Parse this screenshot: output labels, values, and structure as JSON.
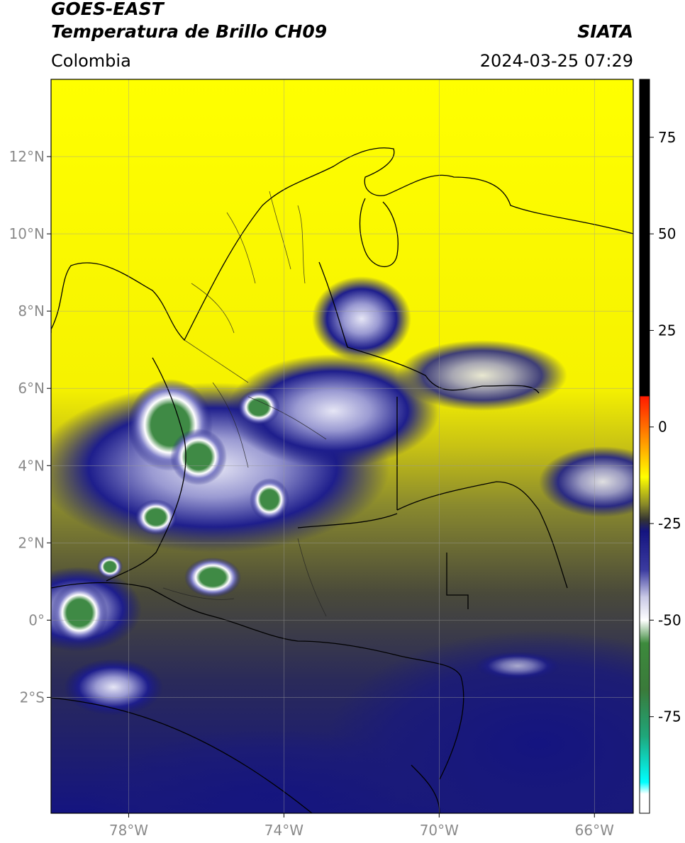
{
  "header": {
    "title_line1": "GOES-EAST",
    "title_line2": "Temperatura de Brillo CH09",
    "brand": "SIATA",
    "region": "Colombia",
    "timestamp": "2024-03-25 07:29"
  },
  "map": {
    "lon_range": [
      -80,
      -65
    ],
    "lat_range": [
      -5,
      14
    ],
    "lon_ticks": [
      {
        "value": -78,
        "label": "78°W"
      },
      {
        "value": -74,
        "label": "74°W"
      },
      {
        "value": -70,
        "label": "70°W"
      },
      {
        "value": -66,
        "label": "66°W"
      }
    ],
    "lat_ticks": [
      {
        "value": 12,
        "label": "12°N"
      },
      {
        "value": 10,
        "label": "10°N"
      },
      {
        "value": 8,
        "label": "8°N"
      },
      {
        "value": 6,
        "label": "6°N"
      },
      {
        "value": 4,
        "label": "4°N"
      },
      {
        "value": 2,
        "label": "2°N"
      },
      {
        "value": 0,
        "label": "0°"
      },
      {
        "value": -2,
        "label": "2°S"
      }
    ],
    "grid": true
  },
  "colorbar": {
    "range": [
      -100,
      90
    ],
    "ticks": [
      {
        "value": 75,
        "label": "75"
      },
      {
        "value": 50,
        "label": "50"
      },
      {
        "value": 25,
        "label": "25"
      },
      {
        "value": 0,
        "label": "0"
      },
      {
        "value": -25,
        "label": "-25"
      },
      {
        "value": -50,
        "label": "-50"
      },
      {
        "value": -75,
        "label": "-75"
      }
    ],
    "stops": [
      {
        "value": 90,
        "color": "#000000"
      },
      {
        "value": 8,
        "color": "#000000"
      },
      {
        "value": 7.9,
        "color": "#ff1a00"
      },
      {
        "value": -4,
        "color": "#ff9a00"
      },
      {
        "value": -13,
        "color": "#ffff00"
      },
      {
        "value": -20,
        "color": "#8a8a28"
      },
      {
        "value": -24,
        "color": "#333333"
      },
      {
        "value": -27,
        "color": "#141480"
      },
      {
        "value": -37,
        "color": "#3b3ba0"
      },
      {
        "value": -44,
        "color": "#c8c8e6"
      },
      {
        "value": -50,
        "color": "#ffffff"
      },
      {
        "value": -56,
        "color": "#3d8a3d"
      },
      {
        "value": -68,
        "color": "#3a7a3a"
      },
      {
        "value": -80,
        "color": "#1fa67a"
      },
      {
        "value": -92,
        "color": "#00ffff"
      },
      {
        "value": -95,
        "color": "#ffffff"
      },
      {
        "value": -100,
        "color": "#ffffff"
      }
    ]
  }
}
